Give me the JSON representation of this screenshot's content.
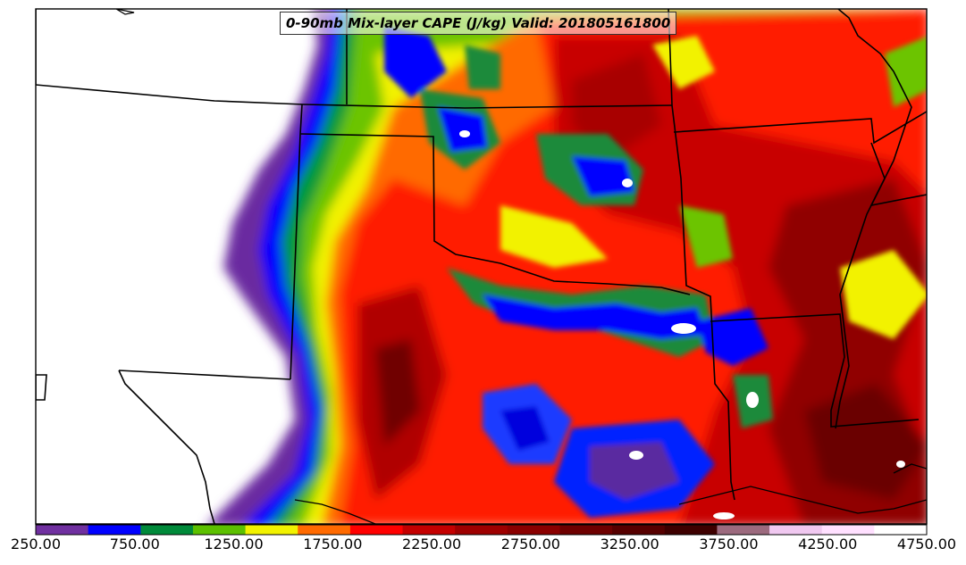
{
  "title": "0-90mb Mix-layer CAPE (J/kg) Valid: 201805161800",
  "colorbar": {
    "colors": [
      "#7030a0",
      "#0000ff",
      "#008a3a",
      "#5cc000",
      "#f2f200",
      "#ff6a00",
      "#ff0000",
      "#c40000",
      "#9e0000",
      "#8a0000",
      "#6e0000",
      "#560000",
      "#3e0000",
      "#9c6a7e",
      "#f0c8f0",
      "#ffe0ff",
      "#ffffff"
    ],
    "tick_labels": [
      "250.00",
      "750.00",
      "1250.00",
      "1750.00",
      "2250.00",
      "2750.00",
      "3250.00",
      "3750.00",
      "4250.00",
      "4750.00"
    ]
  }
}
